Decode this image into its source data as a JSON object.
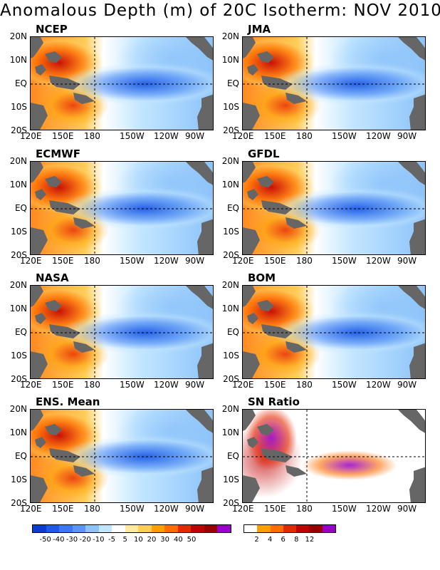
{
  "title": "Anomalous Depth (m) of 20C Isotherm: NOV 2010",
  "panels": [
    {
      "name": "NCEP"
    },
    {
      "name": "JMA"
    },
    {
      "name": "ECMWF"
    },
    {
      "name": "GFDL"
    },
    {
      "name": "NASA"
    },
    {
      "name": "BOM"
    },
    {
      "name": "ENS. Mean"
    },
    {
      "name": "SN Ratio"
    }
  ],
  "y_labels": [
    "20N",
    "10N",
    "EQ",
    "10S",
    "20S"
  ],
  "x_labels": [
    "120E",
    "150E",
    "180",
    "150W",
    "120W",
    "90W"
  ],
  "colorbar_anomaly": {
    "colors": [
      "#0a3ccd",
      "#1e5ae6",
      "#3c78f0",
      "#5a96f5",
      "#8cc3fa",
      "#c3e6ff",
      "#ffffff",
      "#ffeba0",
      "#ffcd5a",
      "#ffa000",
      "#ff6e00",
      "#e62800",
      "#c30000",
      "#960000",
      "#9600c8"
    ],
    "labels": [
      "-50",
      "-40",
      "-30",
      "-20",
      "-10",
      "-5",
      "5",
      "10",
      "20",
      "30",
      "40",
      "50"
    ]
  },
  "colorbar_sn": {
    "colors": [
      "#ffffff",
      "#ffa000",
      "#ff6e00",
      "#e62800",
      "#c30000",
      "#960000",
      "#9600c8"
    ],
    "labels": [
      "2",
      "4",
      "6",
      "8",
      "12"
    ]
  }
}
